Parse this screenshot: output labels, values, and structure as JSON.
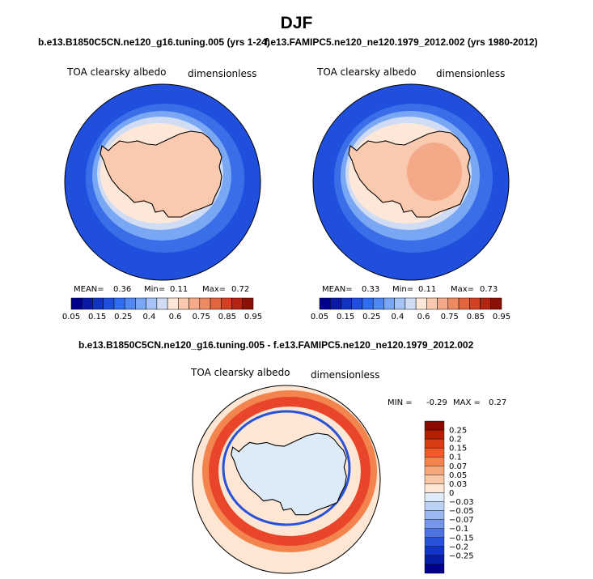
{
  "figure": {
    "title": "DJF",
    "panel_left": {
      "title": "b.e13.B1850C5CN.ne120_g16.tuning.005 (yrs 1-24)",
      "variable": "TOA clearsky albedo",
      "units": "dimensionless",
      "stats": {
        "mean_label": "MEAN=",
        "mean": "0.36",
        "min_label": "Min=",
        "min": "0.11",
        "max_label": "Max=",
        "max": "0.72"
      }
    },
    "panel_right": {
      "title": "f.e13.FAMIPC5.ne120_ne120.1979_2012.002 (yrs 1980-2012)",
      "variable": "TOA clearsky albedo",
      "units": "dimensionless",
      "stats": {
        "mean_label": "MEAN=",
        "mean": "0.33",
        "min_label": "Min=",
        "min": "0.11",
        "max_label": "Max=",
        "max": "0.73"
      }
    },
    "panel_diff": {
      "title": "b.e13.B1850C5CN.ne120_g16.tuning.005 - f.e13.FAMIPC5.ne120_ne120.1979_2012.002",
      "variable": "TOA clearsky albedo",
      "units": "dimensionless",
      "stats": {
        "min_label": "MIN =",
        "min": "-0.29",
        "max_label": "MAX =",
        "max": "0.27"
      }
    },
    "colorbar_abs": {
      "colors": [
        "#00008c",
        "#0a1aa6",
        "#1133c2",
        "#1f4fdc",
        "#2f6cef",
        "#4f88f2",
        "#7aa7f3",
        "#a5c3f5",
        "#cfdcf3",
        "#fde7d9",
        "#f9c9b0",
        "#f4aa88",
        "#ee8a62",
        "#e3653f",
        "#d14225",
        "#b52412",
        "#8a1005"
      ],
      "labels": [
        "0.05",
        "0.15",
        "0.25",
        "0.4",
        "0.6",
        "0.75",
        "0.85",
        "0.95"
      ]
    },
    "colorbar_diff": {
      "colors": [
        "#8a0a00",
        "#b32000",
        "#d63d12",
        "#ee5a28",
        "#f4844e",
        "#f6a77a",
        "#f9c7a6",
        "#fde6d3",
        "#ddeaf8",
        "#bcd2f4",
        "#9ab7ef",
        "#7596ea",
        "#4f74e2",
        "#2a52d8",
        "#1234c4",
        "#071ea6",
        "#00008c"
      ],
      "labels": [
        "0.25",
        "0.2",
        "0.15",
        "0.1",
        "0.07",
        "0.05",
        "0.03",
        "0",
        "−0.03",
        "−0.05",
        "−0.07",
        "−0.1",
        "−0.15",
        "−0.2",
        "−0.25"
      ]
    },
    "field_colors": {
      "ocean_far": "#1f4fdc",
      "ocean_mid": "#3a6ee8",
      "ocean_near": "#7aa7f3",
      "seaice": "#cfdcf3",
      "ice_edge": "#fde7d9",
      "continent": "#f9c9b0",
      "plateau": "#f4aa88",
      "diff_background": "#fde6d3",
      "diff_continent": "#ddeaf8",
      "diff_positive": "#e8452a",
      "diff_positive_light": "#f4844e",
      "diff_negative": "#2a52d8"
    }
  }
}
